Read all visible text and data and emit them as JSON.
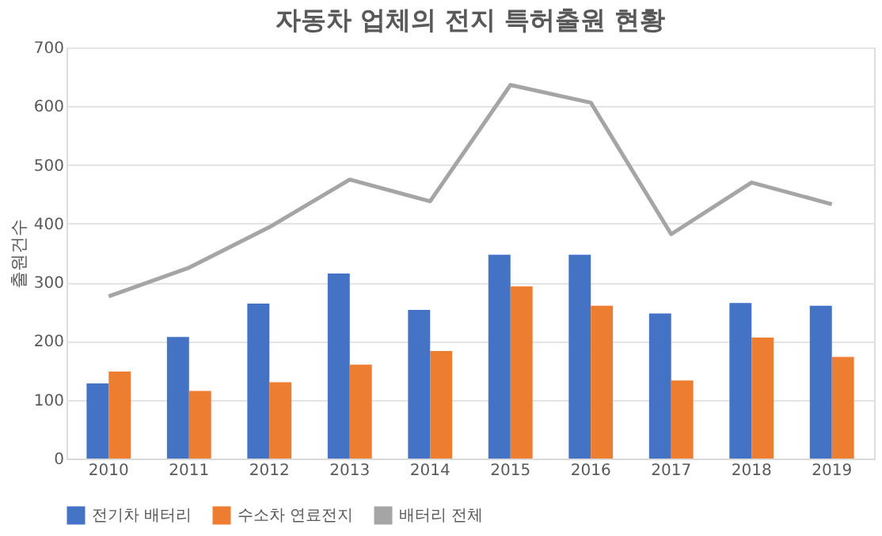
{
  "chart_data": {
    "type": "bar",
    "title": "자동차 업체의 전지 특허출원 현황",
    "ylabel": "출원건수",
    "categories": [
      "2010",
      "2011",
      "2012",
      "2013",
      "2014",
      "2015",
      "2016",
      "2017",
      "2018",
      "2019"
    ],
    "series": [
      {
        "name": "전기차 배터리",
        "color": "#4472c4",
        "values": [
          128,
          207,
          264,
          315,
          253,
          347,
          347,
          247,
          265,
          260
        ]
      },
      {
        "name": "수소차 연료전지",
        "color": "#ed7d31",
        "values": [
          148,
          115,
          130,
          160,
          183,
          293,
          260,
          133,
          206,
          173
        ]
      },
      {
        "name": "배터리 전체",
        "type": "line",
        "color": "#a5a5a5",
        "values": [
          276,
          325,
          394,
          475,
          438,
          636,
          606,
          382,
          470,
          433
        ]
      }
    ],
    "ylim": [
      0,
      700
    ],
    "yticks": [
      0,
      100,
      200,
      300,
      400,
      500,
      600,
      700
    ],
    "grid": "y",
    "legend": "bottom",
    "marker": "none",
    "line_style": "solid"
  }
}
